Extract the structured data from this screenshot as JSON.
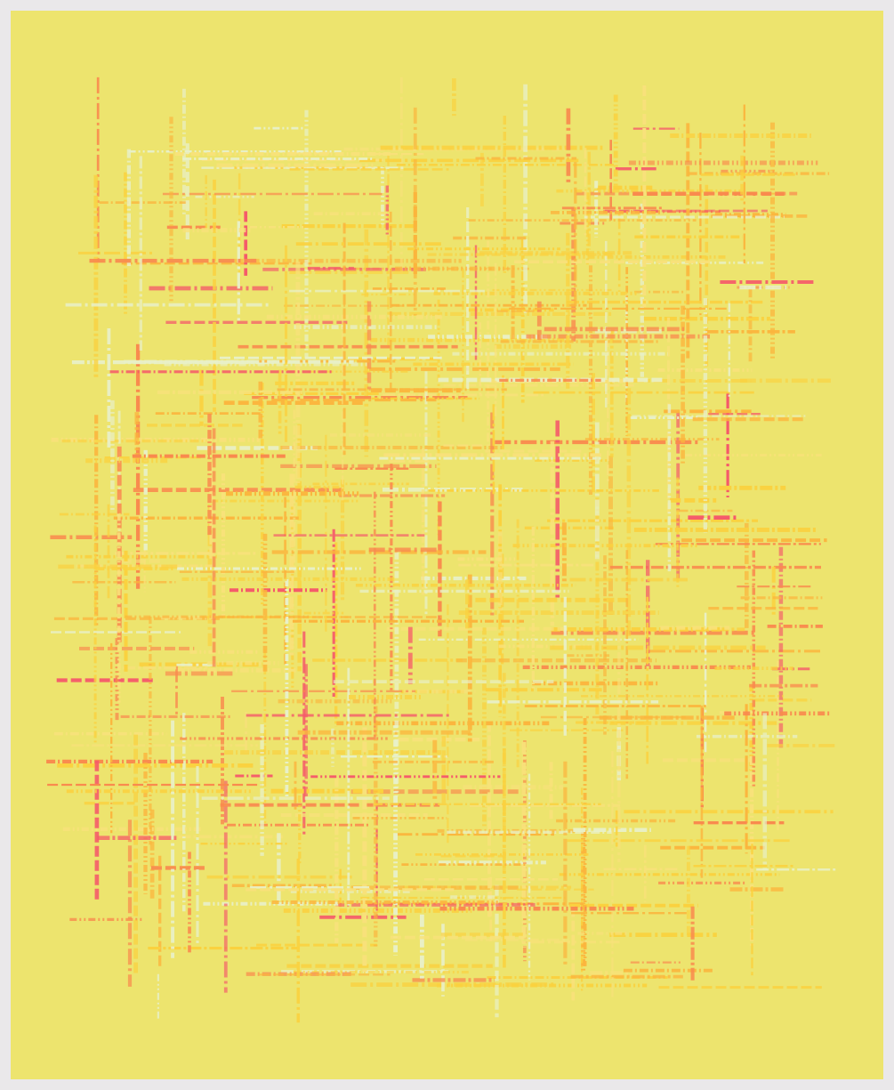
{
  "artwork": {
    "kind": "generative-line-grid",
    "palette": {
      "background": "#ede46e",
      "frame": "#eae8ea",
      "strokes": [
        "#f5596a",
        "#f98a4e",
        "#fbb53d",
        "#fad13f",
        "#f8e17a",
        "#e8f0c8"
      ]
    }
  }
}
